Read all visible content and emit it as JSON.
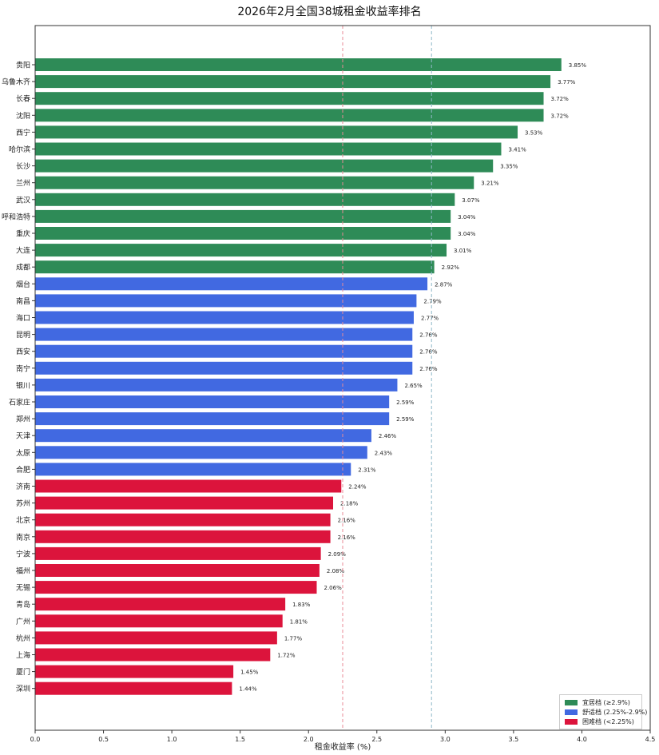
{
  "chart_data": {
    "type": "bar",
    "orientation": "horizontal",
    "title": "2026年2月全国38城租金收益率排名",
    "xlabel": "租金收益率 (%)",
    "ylabel": "",
    "xlim": [
      0,
      4.5
    ],
    "xticks": [
      "0.0",
      "0.5",
      "1.0",
      "1.5",
      "2.0",
      "2.5",
      "3.0",
      "3.5",
      "4.0",
      "4.5"
    ],
    "grid": false,
    "legend_position": "bottom-right",
    "reference_lines": [
      {
        "value": 2.25,
        "color": "#e88a96"
      },
      {
        "value": 2.9,
        "color": "#8fb8c8"
      }
    ],
    "categories": [
      "贵阳",
      "乌鲁木齐",
      "长春",
      "沈阳",
      "西宁",
      "哈尔滨",
      "长沙",
      "兰州",
      "武汉",
      "呼和浩特",
      "重庆",
      "大连",
      "成都",
      "烟台",
      "南昌",
      "海口",
      "昆明",
      "西安",
      "南宁",
      "银川",
      "石家庄",
      "郑州",
      "天津",
      "太原",
      "合肥",
      "济南",
      "苏州",
      "北京",
      "南京",
      "宁波",
      "福州",
      "无锡",
      "青岛",
      "广州",
      "杭州",
      "上海",
      "厦门",
      "深圳"
    ],
    "values": [
      3.85,
      3.77,
      3.72,
      3.72,
      3.53,
      3.41,
      3.35,
      3.21,
      3.07,
      3.04,
      3.04,
      3.01,
      2.92,
      2.87,
      2.79,
      2.77,
      2.76,
      2.76,
      2.76,
      2.65,
      2.59,
      2.59,
      2.46,
      2.43,
      2.31,
      2.24,
      2.18,
      2.16,
      2.16,
      2.09,
      2.08,
      2.06,
      1.83,
      1.81,
      1.77,
      1.72,
      1.45,
      1.44
    ],
    "value_labels": [
      "3.85%",
      "3.77%",
      "3.72%",
      "3.72%",
      "3.53%",
      "3.41%",
      "3.35%",
      "3.21%",
      "3.07%",
      "3.04%",
      "3.04%",
      "3.01%",
      "2.92%",
      "2.87%",
      "2.79%",
      "2.77%",
      "2.76%",
      "2.76%",
      "2.76%",
      "2.65%",
      "2.59%",
      "2.59%",
      "2.46%",
      "2.43%",
      "2.31%",
      "2.24%",
      "2.18%",
      "2.16%",
      "2.16%",
      "2.09%",
      "2.08%",
      "2.06%",
      "1.83%",
      "1.81%",
      "1.77%",
      "1.72%",
      "1.45%",
      "1.44%"
    ],
    "tiers": [
      {
        "name": "宜居档 (≥2.9%)",
        "color": "#2e8b57",
        "min": 2.9
      },
      {
        "name": "舒适档 (2.25%-2.9%)",
        "color": "#4169e1",
        "min": 2.25
      },
      {
        "name": "困难档 (<2.25%)",
        "color": "#dc143c",
        "min": 0
      }
    ]
  }
}
